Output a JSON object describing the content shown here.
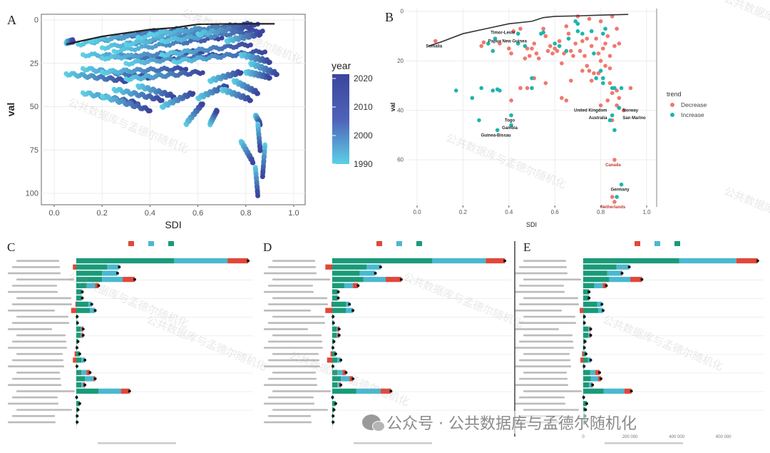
{
  "watermark": "公共数据库与孟德尔随机化",
  "footer": {
    "text": "公众号 · 公共数据库与孟德尔随机化",
    "icon": "wechat-icon"
  },
  "colors": {
    "green": "#1a9a78",
    "blue": "#4ab8d0",
    "red": "#e0473a",
    "year_low": "#5cd0e6",
    "year_high": "#3b459d",
    "decrease": "#f0786e",
    "increase": "#1eb5ad"
  },
  "chart_data": [
    {
      "panel": "A",
      "type": "scatter",
      "xlabel": "SDI",
      "ylabel": "val",
      "xlim": [
        0,
        1
      ],
      "ylim": [
        0,
        100
      ],
      "y_reversed": true,
      "xticks": [
        "0.0",
        "0.2",
        "0.4",
        "0.6",
        "0.8",
        "1.0"
      ],
      "yticks": [
        "0",
        "25",
        "50",
        "75",
        "100"
      ],
      "grid": true,
      "legend": {
        "title": "year",
        "type": "colorbar",
        "range": [
          1990,
          2021
        ],
        "labels": [
          "2020",
          "2010",
          "2000",
          "1990"
        ],
        "placement": "right"
      },
      "frontier": [
        [
          0.05,
          14
        ],
        [
          0.1,
          12.5
        ],
        [
          0.2,
          9.5
        ],
        [
          0.3,
          7.5
        ],
        [
          0.4,
          5.5
        ],
        [
          0.5,
          4.5
        ],
        [
          0.55,
          3.5
        ],
        [
          0.6,
          2.5
        ],
        [
          0.7,
          2.3
        ],
        [
          0.8,
          2.2
        ],
        [
          0.92,
          2.2
        ]
      ],
      "trajectories_1990_to_2021": [
        [
          0.05,
          13,
          0.08,
          12
        ],
        [
          0.1,
          14,
          0.45,
          6
        ],
        [
          0.15,
          12,
          0.55,
          5
        ],
        [
          0.2,
          16,
          0.6,
          8
        ],
        [
          0.25,
          18,
          0.7,
          10
        ],
        [
          0.3,
          14,
          0.75,
          4
        ],
        [
          0.35,
          10,
          0.8,
          3
        ],
        [
          0.4,
          8,
          0.85,
          2
        ],
        [
          0.45,
          12,
          0.87,
          6
        ],
        [
          0.12,
          20,
          0.5,
          22
        ],
        [
          0.2,
          22,
          0.62,
          18
        ],
        [
          0.3,
          25,
          0.7,
          20
        ],
        [
          0.45,
          20,
          0.82,
          14
        ],
        [
          0.5,
          24,
          0.88,
          18
        ],
        [
          0.05,
          31,
          0.3,
          35
        ],
        [
          0.12,
          28,
          0.4,
          33
        ],
        [
          0.2,
          30,
          0.55,
          28
        ],
        [
          0.3,
          34,
          0.62,
          30
        ],
        [
          0.12,
          42,
          0.35,
          48
        ],
        [
          0.2,
          44,
          0.4,
          52
        ],
        [
          0.25,
          40,
          0.45,
          46
        ],
        [
          0.35,
          38,
          0.5,
          44
        ],
        [
          0.45,
          50,
          0.58,
          42
        ],
        [
          0.55,
          60,
          0.62,
          48
        ],
        [
          0.65,
          60,
          0.68,
          52
        ],
        [
          0.6,
          45,
          0.72,
          38
        ],
        [
          0.65,
          35,
          0.78,
          30
        ],
        [
          0.7,
          40,
          0.82,
          46
        ],
        [
          0.75,
          35,
          0.85,
          42
        ],
        [
          0.8,
          30,
          0.9,
          33
        ],
        [
          0.82,
          25,
          0.93,
          31
        ],
        [
          0.78,
          20,
          0.9,
          24
        ],
        [
          0.84,
          55,
          0.86,
          60
        ],
        [
          0.78,
          70,
          0.83,
          82
        ],
        [
          0.84,
          85,
          0.85,
          101
        ],
        [
          0.88,
          72,
          0.87,
          90
        ],
        [
          0.85,
          60,
          0.86,
          75
        ],
        [
          0.72,
          12,
          0.86,
          8
        ],
        [
          0.6,
          8,
          0.82,
          4
        ]
      ]
    },
    {
      "panel": "B",
      "type": "scatter",
      "xlabel": "SDI",
      "ylabel": "val",
      "xlim": [
        0,
        1
      ],
      "ylim": [
        0,
        78
      ],
      "y_reversed": true,
      "xticks": [
        "0.0",
        "0.2",
        "0.4",
        "0.6",
        "0.8",
        "1.0"
      ],
      "yticks": [
        "0",
        "20",
        "40",
        "60"
      ],
      "grid": true,
      "legend": {
        "title": "trend",
        "items": [
          "Decrease",
          "Increase"
        ],
        "placement": "right"
      },
      "frontier": [
        [
          0.05,
          14
        ],
        [
          0.1,
          12.5
        ],
        [
          0.2,
          9
        ],
        [
          0.3,
          7
        ],
        [
          0.4,
          5
        ],
        [
          0.5,
          4
        ],
        [
          0.55,
          2.5
        ],
        [
          0.6,
          2
        ],
        [
          0.7,
          1.8
        ],
        [
          0.8,
          1.5
        ],
        [
          0.92,
          1.2
        ]
      ],
      "decrease": [
        [
          0.08,
          12
        ],
        [
          0.28,
          14
        ],
        [
          0.29,
          12.5
        ],
        [
          0.36,
          13
        ],
        [
          0.4,
          15
        ],
        [
          0.41,
          17
        ],
        [
          0.42,
          8
        ],
        [
          0.45,
          7
        ],
        [
          0.47,
          19
        ],
        [
          0.48,
          15
        ],
        [
          0.49,
          18
        ],
        [
          0.5,
          15
        ],
        [
          0.51,
          13
        ],
        [
          0.52,
          17
        ],
        [
          0.53,
          19
        ],
        [
          0.55,
          7
        ],
        [
          0.56,
          10
        ],
        [
          0.57,
          16
        ],
        [
          0.58,
          14
        ],
        [
          0.59,
          17
        ],
        [
          0.6,
          15
        ],
        [
          0.61,
          16
        ],
        [
          0.62,
          12
        ],
        [
          0.63,
          21
        ],
        [
          0.64,
          17
        ],
        [
          0.65,
          6
        ],
        [
          0.66,
          9
        ],
        [
          0.67,
          16
        ],
        [
          0.68,
          18
        ],
        [
          0.69,
          13
        ],
        [
          0.7,
          2
        ],
        [
          0.71,
          16
        ],
        [
          0.72,
          12
        ],
        [
          0.73,
          18
        ],
        [
          0.74,
          11
        ],
        [
          0.75,
          3
        ],
        [
          0.76,
          14
        ],
        [
          0.77,
          25
        ],
        [
          0.78,
          11
        ],
        [
          0.79,
          17
        ],
        [
          0.8,
          4
        ],
        [
          0.81,
          15
        ],
        [
          0.82,
          13
        ],
        [
          0.83,
          10
        ],
        [
          0.84,
          18
        ],
        [
          0.85,
          2
        ],
        [
          0.86,
          14
        ],
        [
          0.87,
          7
        ],
        [
          0.88,
          13
        ],
        [
          0.72,
          24
        ],
        [
          0.74,
          22
        ],
        [
          0.75,
          24
        ],
        [
          0.79,
          25
        ],
        [
          0.8,
          20
        ],
        [
          0.82,
          22
        ],
        [
          0.84,
          23
        ],
        [
          0.45,
          31
        ],
        [
          0.48,
          31
        ],
        [
          0.51,
          27
        ],
        [
          0.56,
          29
        ],
        [
          0.41,
          36
        ],
        [
          0.63,
          35
        ],
        [
          0.65,
          36
        ],
        [
          0.67,
          28
        ],
        [
          0.76,
          28
        ],
        [
          0.84,
          29
        ],
        [
          0.85,
          33
        ],
        [
          0.87,
          32
        ],
        [
          0.88,
          35
        ],
        [
          0.93,
          31
        ],
        [
          0.83,
          36
        ],
        [
          0.87,
          38
        ],
        [
          0.9,
          40
        ],
        [
          0.85,
          44
        ],
        [
          0.86,
          60
        ],
        [
          0.85,
          75
        ],
        [
          0.86,
          77
        ],
        [
          0.8,
          38
        ]
      ],
      "increase": [
        [
          0.17,
          32
        ],
        [
          0.24,
          35
        ],
        [
          0.27,
          44
        ],
        [
          0.28,
          31
        ],
        [
          0.33,
          32
        ],
        [
          0.35,
          31.5
        ],
        [
          0.36,
          32
        ],
        [
          0.35,
          48
        ],
        [
          0.41,
          42
        ],
        [
          0.41,
          46
        ],
        [
          0.5,
          27
        ],
        [
          0.5,
          31
        ],
        [
          0.31,
          13
        ],
        [
          0.33,
          16
        ],
        [
          0.34,
          11
        ],
        [
          0.44,
          9
        ],
        [
          0.44,
          13
        ],
        [
          0.47,
          14
        ],
        [
          0.54,
          9
        ],
        [
          0.55,
          8.5
        ],
        [
          0.6,
          13
        ],
        [
          0.66,
          11
        ],
        [
          0.69,
          4
        ],
        [
          0.7,
          5
        ],
        [
          0.7,
          8
        ],
        [
          0.72,
          9
        ],
        [
          0.76,
          8
        ],
        [
          0.78,
          27
        ],
        [
          0.8,
          24
        ],
        [
          0.81,
          27
        ],
        [
          0.81,
          29
        ],
        [
          0.85,
          31
        ],
        [
          0.86,
          31
        ],
        [
          0.88,
          39
        ],
        [
          0.85,
          42
        ],
        [
          0.84,
          44
        ],
        [
          0.86,
          48
        ],
        [
          0.89,
          31
        ],
        [
          0.89,
          70
        ],
        [
          0.87,
          75
        ],
        [
          0.81,
          9
        ],
        [
          0.82,
          7
        ],
        [
          0.77,
          17
        ],
        [
          0.62,
          14
        ],
        [
          0.65,
          16
        ]
      ],
      "labels": [
        {
          "text": "Somalia",
          "x": 0.08,
          "y": 12
        },
        {
          "text": "Timor-Leste",
          "x": 0.38,
          "y": 6.5
        },
        {
          "text": "Papua New Guinea",
          "x": 0.4,
          "y": 10
        },
        {
          "text": "Togo",
          "x": 0.41,
          "y": 42
        },
        {
          "text": "Gambia",
          "x": 0.41,
          "y": 45
        },
        {
          "text": "Guinea-Bissau",
          "x": 0.35,
          "y": 48
        },
        {
          "text": "United Kingdom",
          "x": 0.84,
          "y": 40
        },
        {
          "text": "Norway",
          "x": 0.88,
          "y": 40
        },
        {
          "text": "Australia",
          "x": 0.84,
          "y": 43
        },
        {
          "text": "San Marino",
          "x": 0.88,
          "y": 43
        },
        {
          "text": "Canada",
          "x": 0.86,
          "y": 60
        },
        {
          "text": "Germany",
          "x": 0.89,
          "y": 70
        },
        {
          "text": "Netherlands",
          "x": 0.86,
          "y": 77
        }
      ]
    },
    {
      "panel": "C",
      "type": "bar",
      "orientation": "horizontal",
      "stacked": true,
      "series": [
        "red",
        "blue",
        "green"
      ],
      "xlim": [
        0,
        100
      ],
      "rows": [
        [
          57,
          31,
          12
        ],
        [
          18,
          7,
          -2
        ],
        [
          15,
          9,
          0
        ],
        [
          15,
          12,
          7
        ],
        [
          6,
          5,
          2
        ],
        [
          3,
          0.5,
          0
        ],
        [
          3,
          0.5,
          0
        ],
        [
          7,
          2,
          -0.5
        ],
        [
          8,
          3,
          -3
        ],
        [
          0.5,
          0,
          0
        ],
        [
          0.7,
          0,
          0
        ],
        [
          2.5,
          0.5,
          1
        ],
        [
          2.5,
          0.5,
          1
        ],
        [
          1,
          0,
          0
        ],
        [
          0.4,
          0,
          0
        ],
        [
          2,
          0,
          -1
        ],
        [
          3,
          2,
          -2
        ],
        [
          0.4,
          0,
          0
        ],
        [
          3,
          3,
          2
        ],
        [
          5,
          5,
          1
        ],
        [
          3,
          1,
          1
        ],
        [
          13,
          13,
          5
        ],
        [
          0.2,
          0,
          0
        ],
        [
          2,
          0,
          0
        ],
        [
          1,
          0,
          0
        ],
        [
          0.5,
          0,
          0
        ],
        [
          0.5,
          0,
          0
        ]
      ]
    },
    {
      "panel": "D",
      "type": "bar",
      "orientation": "horizontal",
      "stacked": true,
      "series": [
        "red",
        "blue",
        "green"
      ],
      "xlim": [
        0,
        100
      ],
      "rows": [
        [
          58,
          31,
          11
        ],
        [
          20,
          8,
          -4
        ],
        [
          16,
          9,
          0
        ],
        [
          18,
          13,
          9
        ],
        [
          7,
          5,
          3
        ],
        [
          3,
          0.5,
          0
        ],
        [
          3,
          0.5,
          0
        ],
        [
          8,
          2,
          -0.5
        ],
        [
          8,
          4,
          -4
        ],
        [
          0.5,
          0,
          0
        ],
        [
          0.7,
          0,
          0
        ],
        [
          2.5,
          0.5,
          1
        ],
        [
          2.5,
          0.5,
          1
        ],
        [
          1,
          0,
          0
        ],
        [
          0.4,
          0,
          0
        ],
        [
          2,
          0,
          -1
        ],
        [
          3,
          2,
          -3
        ],
        [
          0.4,
          0,
          0
        ],
        [
          3,
          3,
          2
        ],
        [
          5,
          5,
          2
        ],
        [
          3,
          1,
          1
        ],
        [
          14,
          14,
          6
        ],
        [
          0.2,
          0,
          0
        ],
        [
          2,
          0,
          0
        ],
        [
          1,
          0,
          0
        ],
        [
          0.5,
          0,
          0
        ],
        [
          0.5,
          0,
          0
        ]
      ]
    },
    {
      "panel": "E",
      "type": "bar",
      "orientation": "horizontal",
      "stacked": true,
      "series": [
        "red",
        "blue",
        "green"
      ],
      "xlim": [
        0,
        780000
      ],
      "xticks": [
        "0",
        "200 000",
        "400 000",
        "600 000"
      ],
      "rows": [
        [
          411000,
          244000,
          91000
        ],
        [
          142000,
          55000,
          0
        ],
        [
          103000,
          58000,
          5000
        ],
        [
          111000,
          90000,
          50000
        ],
        [
          47000,
          37000,
          15000
        ],
        [
          25000,
          0,
          0
        ],
        [
          25000,
          0,
          0
        ],
        [
          60000,
          20000,
          0
        ],
        [
          65000,
          20000,
          -15000
        ],
        [
          5000,
          0,
          0
        ],
        [
          5000,
          0,
          0
        ],
        [
          22000,
          5000,
          5000
        ],
        [
          22000,
          5000,
          5000
        ],
        [
          8000,
          0,
          0
        ],
        [
          5000,
          0,
          0
        ],
        [
          12000,
          0,
          -5000
        ],
        [
          20000,
          12000,
          -12000
        ],
        [
          4000,
          0,
          0
        ],
        [
          30000,
          22000,
          18000
        ],
        [
          32000,
          32000,
          12000
        ],
        [
          25000,
          10000,
          5000
        ],
        [
          88000,
          88000,
          30000
        ],
        [
          2000,
          0,
          0
        ],
        [
          15000,
          0,
          0
        ],
        [
          10000,
          0,
          0
        ],
        [
          8000,
          0,
          0
        ],
        [
          8000,
          0,
          0
        ]
      ]
    }
  ]
}
